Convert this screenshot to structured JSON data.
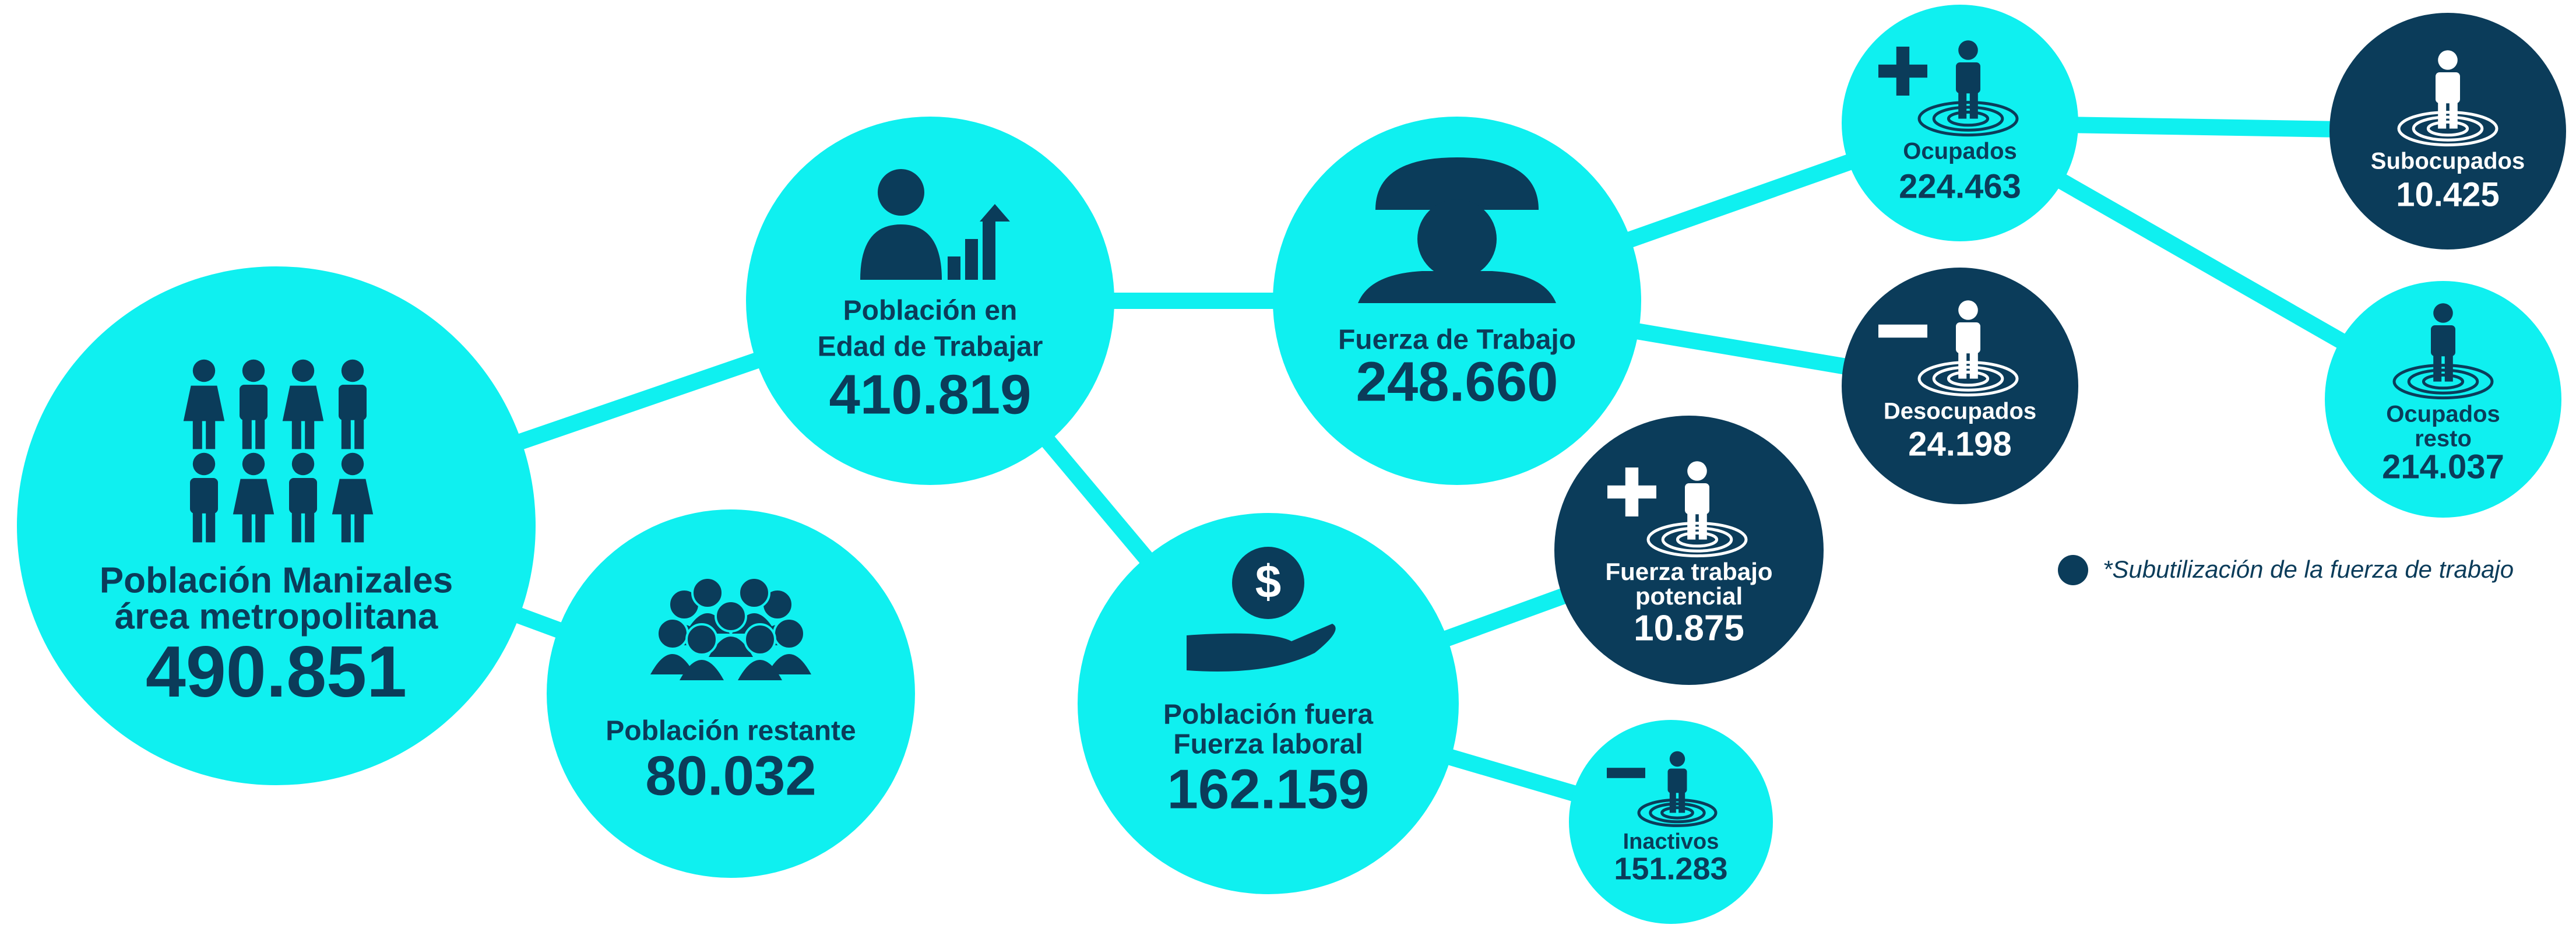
{
  "nodes": [
    {
      "label": [
        "Población Manizales",
        "área metropolitana"
      ],
      "value": "490.851"
    },
    {
      "label": [
        "Población restante"
      ],
      "value": "80.032"
    },
    {
      "label": [
        "Población en",
        "Edad de Trabajar"
      ],
      "value": "410.819"
    },
    {
      "label": [
        "Población fuera",
        "Fuerza laboral"
      ],
      "value": "162.159"
    },
    {
      "label": [
        "Fuerza de Trabajo"
      ],
      "value": "248.660"
    },
    {
      "label": [
        "Fuerza trabajo",
        "potencial"
      ],
      "value": "10.875"
    },
    {
      "label": [
        "Inactivos"
      ],
      "value": "151.283"
    },
    {
      "label": [
        "Ocupados"
      ],
      "value": "224.463"
    },
    {
      "label": [
        "Desocupados"
      ],
      "value": "24.198"
    },
    {
      "label": [
        "Subocupados"
      ],
      "value": "10.425"
    },
    {
      "label": [
        "Ocupados",
        "resto"
      ],
      "value": "214.037"
    }
  ],
  "legend": {
    "text": "*Subutilización de la fuerza de trabajo"
  }
}
